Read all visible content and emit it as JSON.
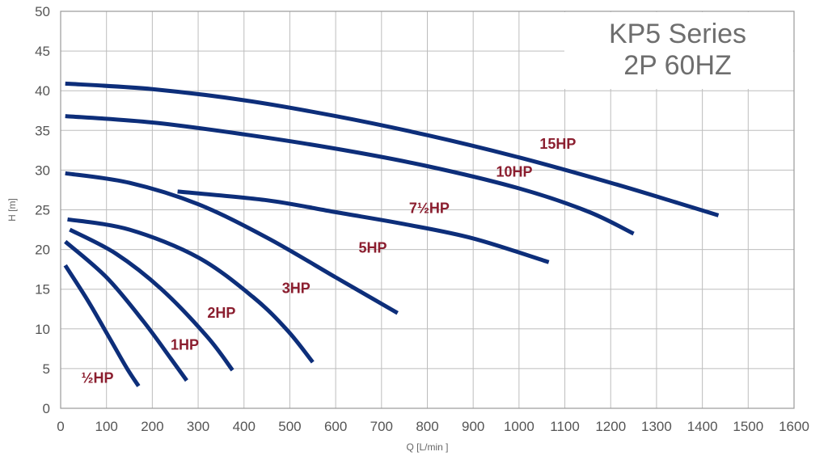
{
  "chart_data": {
    "type": "line",
    "title_line1": "KP5 Series",
    "title_line2": "2P 60HZ",
    "xlabel": "Q [L/min ]",
    "ylabel": "H [m]",
    "xlim": [
      0,
      1600
    ],
    "ylim": [
      0,
      50
    ],
    "x_ticks": [
      0,
      100,
      200,
      300,
      400,
      500,
      600,
      700,
      800,
      900,
      1000,
      1100,
      1200,
      1300,
      1400,
      1500,
      1600
    ],
    "y_ticks": [
      0,
      5,
      10,
      15,
      20,
      25,
      30,
      35,
      40,
      45,
      50
    ],
    "grid": true,
    "colors": {
      "curve": "#0d2e7a",
      "label": "#8b1e2f",
      "grid": "#bdbdbd"
    },
    "series": [
      {
        "name": "½HP",
        "label_at": [
          45,
          3.2
        ],
        "points": [
          [
            10,
            18
          ],
          [
            60,
            13.5
          ],
          [
            110,
            8.5
          ],
          [
            145,
            5
          ],
          [
            170,
            2.8
          ]
        ]
      },
      {
        "name": "1HP",
        "label_at": [
          240,
          7.4
        ],
        "points": [
          [
            10,
            21
          ],
          [
            100,
            16.5
          ],
          [
            180,
            11
          ],
          [
            240,
            6.3
          ],
          [
            275,
            3.5
          ]
        ]
      },
      {
        "name": "2HP",
        "label_at": [
          320,
          11.4
        ],
        "points": [
          [
            20,
            22.5
          ],
          [
            120,
            19.5
          ],
          [
            220,
            15
          ],
          [
            320,
            9
          ],
          [
            375,
            4.8
          ]
        ]
      },
      {
        "name": "3HP",
        "label_at": [
          483,
          14.5
        ],
        "points": [
          [
            15,
            23.8
          ],
          [
            150,
            22.5
          ],
          [
            300,
            19
          ],
          [
            420,
            14
          ],
          [
            495,
            9.8
          ],
          [
            550,
            5.8
          ]
        ]
      },
      {
        "name": "5HP",
        "label_at": [
          650,
          19.6
        ],
        "points": [
          [
            10,
            29.6
          ],
          [
            150,
            28.4
          ],
          [
            300,
            25.7
          ],
          [
            450,
            21.5
          ],
          [
            600,
            16.5
          ],
          [
            735,
            12
          ]
        ]
      },
      {
        "name": "7½HP",
        "label_at": [
          760,
          24.6
        ],
        "points": [
          [
            255,
            27.3
          ],
          [
            450,
            26.2
          ],
          [
            600,
            24.7
          ],
          [
            750,
            23.2
          ],
          [
            900,
            21.4
          ],
          [
            1065,
            18.4
          ]
        ]
      },
      {
        "name": "10HP",
        "label_at": [
          950,
          29.2
        ],
        "points": [
          [
            10,
            36.8
          ],
          [
            200,
            36
          ],
          [
            400,
            34.5
          ],
          [
            600,
            32.7
          ],
          [
            800,
            30.5
          ],
          [
            1000,
            27.7
          ],
          [
            1150,
            24.8
          ],
          [
            1250,
            22
          ]
        ]
      },
      {
        "name": "15HP",
        "label_at": [
          1045,
          32.7
        ],
        "points": [
          [
            10,
            40.9
          ],
          [
            200,
            40.2
          ],
          [
            400,
            38.8
          ],
          [
            600,
            36.8
          ],
          [
            800,
            34.4
          ],
          [
            1000,
            31.6
          ],
          [
            1200,
            28.4
          ],
          [
            1350,
            25.8
          ],
          [
            1435,
            24.3
          ]
        ]
      }
    ]
  }
}
